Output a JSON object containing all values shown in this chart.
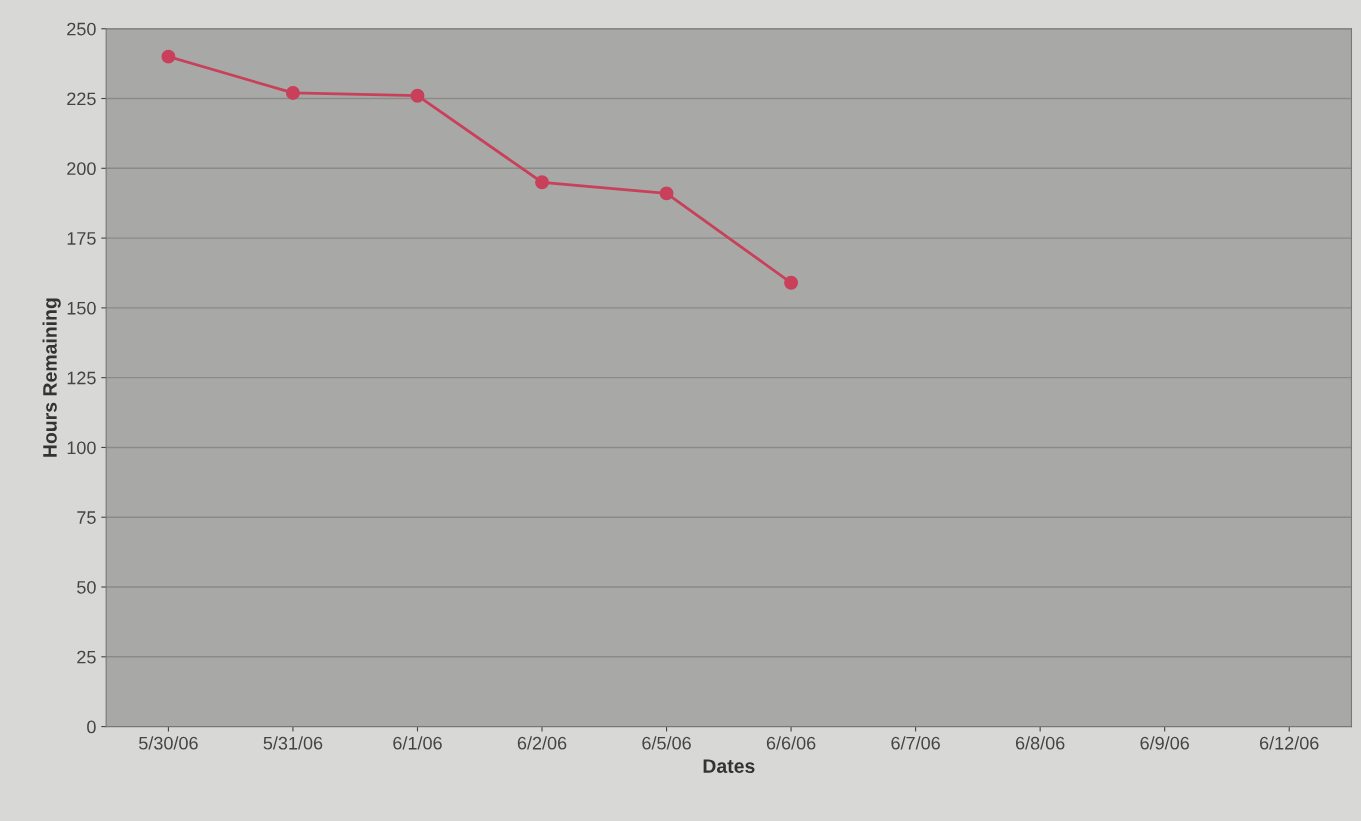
{
  "chart_data": {
    "type": "line",
    "xlabel": "Dates",
    "ylabel": "Hours Remaining",
    "categories": [
      "5/30/06",
      "5/31/06",
      "6/1/06",
      "6/2/06",
      "6/5/06",
      "6/6/06",
      "6/7/06",
      "6/8/06",
      "6/9/06",
      "6/12/06"
    ],
    "series": [
      {
        "color": "#c8405a",
        "values": [
          240,
          227,
          226,
          195,
          191,
          159,
          null,
          null,
          null,
          null
        ]
      }
    ],
    "ylim": [
      0,
      250
    ],
    "yticks": [
      0,
      25,
      50,
      75,
      100,
      125,
      150,
      175,
      200,
      225,
      250
    ],
    "grid": "y",
    "marker": "circle",
    "line_style": "solid"
  }
}
